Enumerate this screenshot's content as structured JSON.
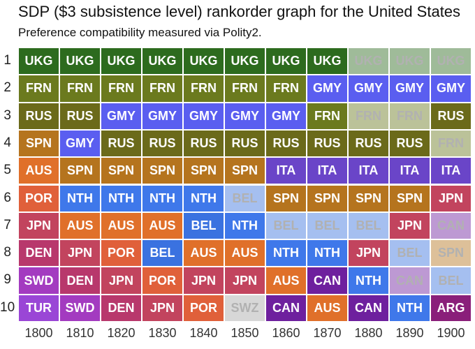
{
  "chart_data": {
    "type": "heatmap",
    "title": "SDP ($3 subsistence level) rankorder graph for the United States",
    "subtitle": "Preference compatibility measured via Polity2.",
    "y_ticks": [
      "1",
      "2",
      "3",
      "4",
      "5",
      "6",
      "7",
      "8",
      "9",
      "10"
    ],
    "x_ticks": [
      "1800",
      "1810",
      "1820",
      "1830",
      "1840",
      "1850",
      "1860",
      "1870",
      "1880",
      "1890",
      "1900"
    ],
    "colors": {
      "UKG": "#2d6b1e",
      "FRN": "#6b7a1e",
      "RUS": "#6b6a1a",
      "GMY": "#5a5ef0",
      "SPN": "#b5741e",
      "AUS": "#e0702a",
      "ITA": "#6a45c8",
      "POR": "#e0603a",
      "NTH": "#3f78ea",
      "BEL": "#3a72e0",
      "JPN": "#c2445e",
      "DEN": "#b8386c",
      "SWD": "#a33bc0",
      "TUR": "#9a46d6",
      "SWZ": "#a8a8a8",
      "CAN": "#6e209e",
      "ARG": "#8a1f7a"
    },
    "columns": [
      {
        "year": "1800",
        "cells": [
          {
            "label": "UKG",
            "dim": false
          },
          {
            "label": "FRN",
            "dim": false
          },
          {
            "label": "RUS",
            "dim": false
          },
          {
            "label": "SPN",
            "dim": false
          },
          {
            "label": "AUS",
            "dim": false
          },
          {
            "label": "POR",
            "dim": false
          },
          {
            "label": "JPN",
            "dim": false
          },
          {
            "label": "DEN",
            "dim": false
          },
          {
            "label": "SWD",
            "dim": false
          },
          {
            "label": "TUR",
            "dim": false
          }
        ]
      },
      {
        "year": "1810",
        "cells": [
          {
            "label": "UKG",
            "dim": false
          },
          {
            "label": "FRN",
            "dim": false
          },
          {
            "label": "RUS",
            "dim": false
          },
          {
            "label": "GMY",
            "dim": false
          },
          {
            "label": "SPN",
            "dim": false
          },
          {
            "label": "NTH",
            "dim": false
          },
          {
            "label": "AUS",
            "dim": false
          },
          {
            "label": "JPN",
            "dim": false
          },
          {
            "label": "DEN",
            "dim": false
          },
          {
            "label": "SWD",
            "dim": false
          }
        ]
      },
      {
        "year": "1820",
        "cells": [
          {
            "label": "UKG",
            "dim": false
          },
          {
            "label": "FRN",
            "dim": false
          },
          {
            "label": "GMY",
            "dim": false
          },
          {
            "label": "RUS",
            "dim": false
          },
          {
            "label": "SPN",
            "dim": false
          },
          {
            "label": "NTH",
            "dim": false
          },
          {
            "label": "AUS",
            "dim": false
          },
          {
            "label": "POR",
            "dim": false
          },
          {
            "label": "JPN",
            "dim": false
          },
          {
            "label": "DEN",
            "dim": false
          }
        ]
      },
      {
        "year": "1830",
        "cells": [
          {
            "label": "UKG",
            "dim": false
          },
          {
            "label": "FRN",
            "dim": false
          },
          {
            "label": "GMY",
            "dim": false
          },
          {
            "label": "RUS",
            "dim": false
          },
          {
            "label": "SPN",
            "dim": false
          },
          {
            "label": "NTH",
            "dim": false
          },
          {
            "label": "AUS",
            "dim": false
          },
          {
            "label": "BEL",
            "dim": false
          },
          {
            "label": "POR",
            "dim": false
          },
          {
            "label": "JPN",
            "dim": false
          }
        ]
      },
      {
        "year": "1840",
        "cells": [
          {
            "label": "UKG",
            "dim": false
          },
          {
            "label": "FRN",
            "dim": false
          },
          {
            "label": "GMY",
            "dim": false
          },
          {
            "label": "RUS",
            "dim": false
          },
          {
            "label": "SPN",
            "dim": false
          },
          {
            "label": "NTH",
            "dim": false
          },
          {
            "label": "BEL",
            "dim": false
          },
          {
            "label": "AUS",
            "dim": false
          },
          {
            "label": "JPN",
            "dim": false
          },
          {
            "label": "POR",
            "dim": false
          }
        ]
      },
      {
        "year": "1850",
        "cells": [
          {
            "label": "UKG",
            "dim": false
          },
          {
            "label": "FRN",
            "dim": false
          },
          {
            "label": "GMY",
            "dim": false
          },
          {
            "label": "RUS",
            "dim": false
          },
          {
            "label": "SPN",
            "dim": false
          },
          {
            "label": "BEL",
            "dim": true
          },
          {
            "label": "NTH",
            "dim": false
          },
          {
            "label": "AUS",
            "dim": false
          },
          {
            "label": "JPN",
            "dim": false
          },
          {
            "label": "SWZ",
            "dim": true
          }
        ]
      },
      {
        "year": "1860",
        "cells": [
          {
            "label": "UKG",
            "dim": false
          },
          {
            "label": "FRN",
            "dim": false
          },
          {
            "label": "GMY",
            "dim": false
          },
          {
            "label": "RUS",
            "dim": false
          },
          {
            "label": "ITA",
            "dim": false
          },
          {
            "label": "SPN",
            "dim": false
          },
          {
            "label": "BEL",
            "dim": true
          },
          {
            "label": "NTH",
            "dim": false
          },
          {
            "label": "AUS",
            "dim": false
          },
          {
            "label": "CAN",
            "dim": false
          }
        ]
      },
      {
        "year": "1870",
        "cells": [
          {
            "label": "UKG",
            "dim": false
          },
          {
            "label": "GMY",
            "dim": false
          },
          {
            "label": "FRN",
            "dim": false
          },
          {
            "label": "RUS",
            "dim": false
          },
          {
            "label": "ITA",
            "dim": false
          },
          {
            "label": "SPN",
            "dim": false
          },
          {
            "label": "BEL",
            "dim": true
          },
          {
            "label": "NTH",
            "dim": false
          },
          {
            "label": "CAN",
            "dim": false
          },
          {
            "label": "AUS",
            "dim": false
          }
        ]
      },
      {
        "year": "1880",
        "cells": [
          {
            "label": "UKG",
            "dim": true
          },
          {
            "label": "GMY",
            "dim": false
          },
          {
            "label": "FRN",
            "dim": true
          },
          {
            "label": "RUS",
            "dim": false
          },
          {
            "label": "ITA",
            "dim": false
          },
          {
            "label": "SPN",
            "dim": false
          },
          {
            "label": "BEL",
            "dim": true
          },
          {
            "label": "JPN",
            "dim": false
          },
          {
            "label": "NTH",
            "dim": false
          },
          {
            "label": "CAN",
            "dim": false
          }
        ]
      },
      {
        "year": "1890",
        "cells": [
          {
            "label": "UKG",
            "dim": true
          },
          {
            "label": "GMY",
            "dim": false
          },
          {
            "label": "FRN",
            "dim": true
          },
          {
            "label": "RUS",
            "dim": false
          },
          {
            "label": "ITA",
            "dim": false
          },
          {
            "label": "SPN",
            "dim": false
          },
          {
            "label": "JPN",
            "dim": false
          },
          {
            "label": "BEL",
            "dim": true
          },
          {
            "label": "CAN",
            "dim": true
          },
          {
            "label": "NTH",
            "dim": false
          }
        ]
      },
      {
        "year": "1900",
        "cells": [
          {
            "label": "UKG",
            "dim": true
          },
          {
            "label": "GMY",
            "dim": false
          },
          {
            "label": "RUS",
            "dim": false
          },
          {
            "label": "FRN",
            "dim": true
          },
          {
            "label": "ITA",
            "dim": false
          },
          {
            "label": "JPN",
            "dim": false
          },
          {
            "label": "CAN",
            "dim": true
          },
          {
            "label": "SPN",
            "dim": true
          },
          {
            "label": "BEL",
            "dim": true
          },
          {
            "label": "ARG",
            "dim": false
          }
        ]
      }
    ]
  }
}
